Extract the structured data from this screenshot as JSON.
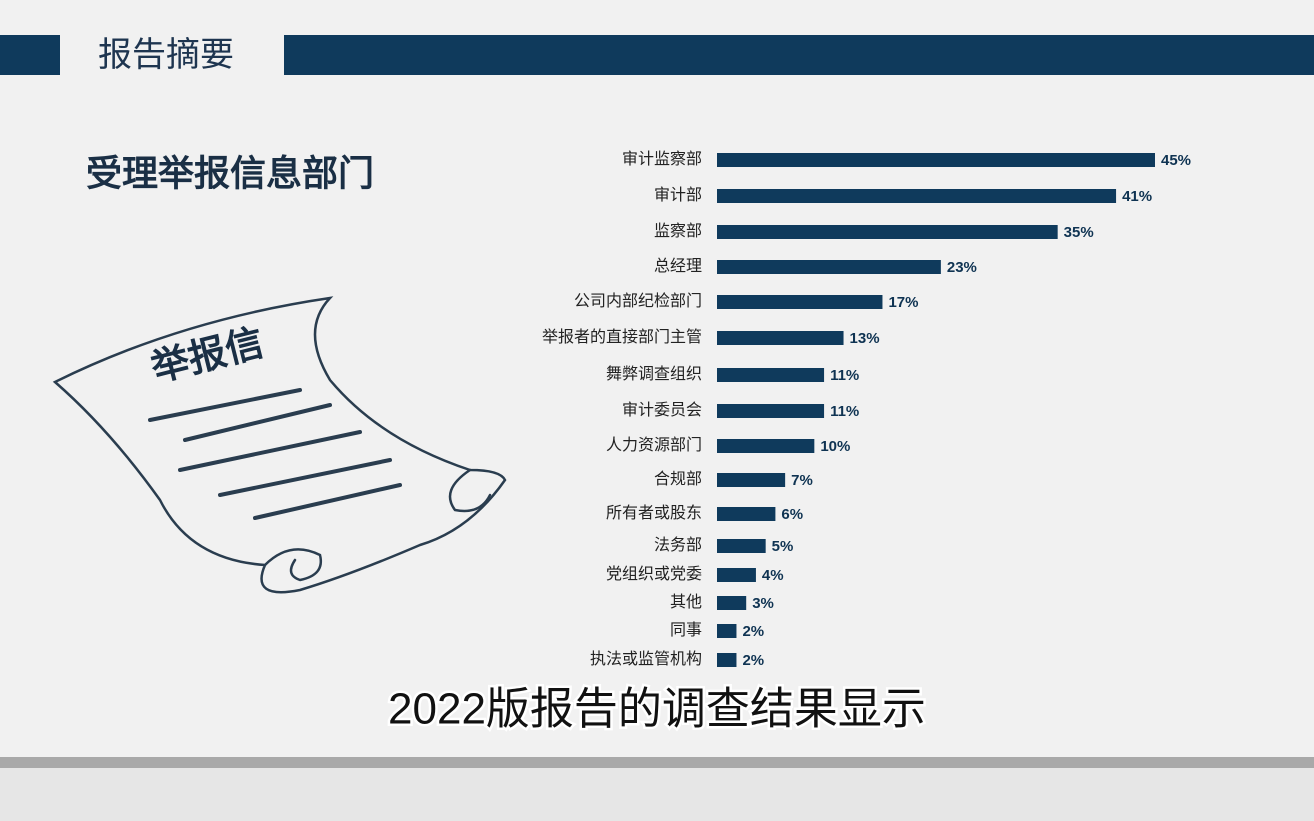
{
  "header": {
    "title": "报告摘要"
  },
  "illustration": {
    "label": "举报信"
  },
  "caption": "2022版报告的调查结果显示",
  "chart_data": {
    "type": "hbar",
    "title": "受理举报信息部门",
    "color": "#0f3a5c",
    "categories": [
      "审计监察部",
      "审计部",
      "监察部",
      "总经理",
      "公司内部纪检部门",
      "举报者的直接部门主管",
      "舞弊调查组织",
      "审计委员会",
      "人力资源部门",
      "合规部",
      "所有者或股东",
      "法务部",
      "党组织或党委",
      "其他",
      "同事",
      "执法或监管机构"
    ],
    "values": [
      45,
      41,
      35,
      23,
      17,
      13,
      11,
      11,
      10,
      7,
      6,
      5,
      4,
      3,
      2,
      2
    ],
    "value_labels": [
      "45%",
      "41%",
      "35%",
      "23%",
      "17%",
      "13%",
      "11%",
      "11%",
      "10%",
      "7%",
      "6%",
      "5%",
      "4%",
      "3%",
      "2%",
      "2%"
    ]
  }
}
